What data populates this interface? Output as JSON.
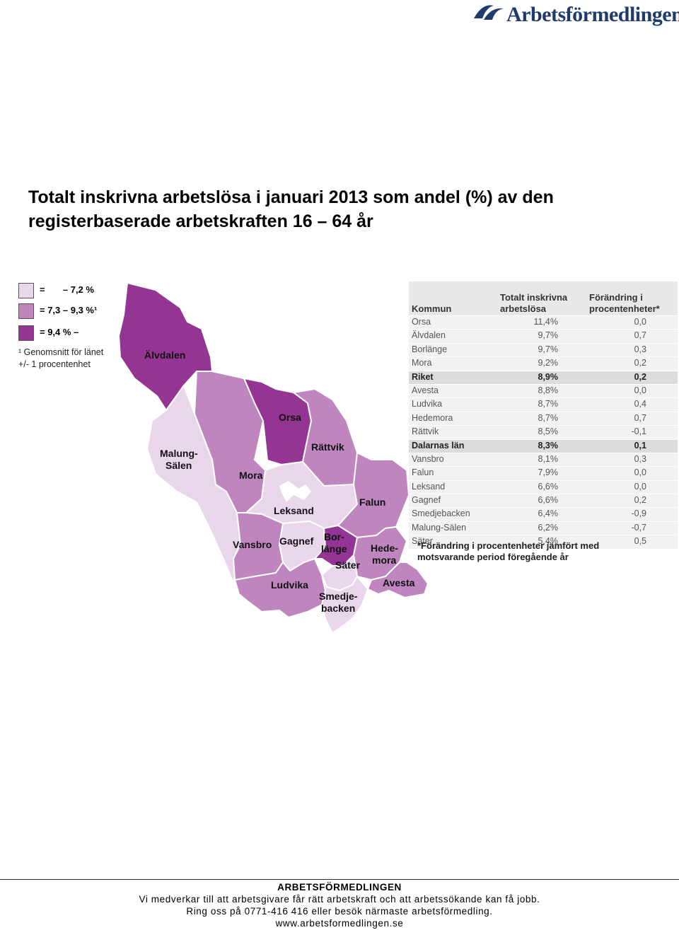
{
  "header": {
    "logo_text": "Arbetsförmedlingen",
    "title_line1": "Totalt inskrivna arbetslösa i januari 2013 som andel (%) av den",
    "title_line2": "registerbaserade arbetskraften 16 – 64 år"
  },
  "colors": {
    "low": "#ead6ea",
    "mid": "#be85be",
    "high": "#943594",
    "border": "#ffffff",
    "logo": "#1f3a6b"
  },
  "legend": {
    "items": [
      {
        "text": "=       – 7,2 %"
      },
      {
        "text": "= 7,3 – 9,3 %¹"
      },
      {
        "text": "= 9,4 % –"
      }
    ],
    "note_line1": "¹ Genomsnitt för länet",
    "note_line2": "+/- 1 procentenhet"
  },
  "map": {
    "labels": {
      "alvdalen": "Älvdalen",
      "orsa": "Orsa",
      "rattvik": "Rättvik",
      "malung1": "Malung-",
      "malung2": "Sälen",
      "mora": "Mora",
      "leksand": "Leksand",
      "falun": "Falun",
      "vansbro": "Vansbro",
      "gagnef": "Gagnef",
      "borlange1": "Bor-",
      "borlange2": "länge",
      "hedemora1": "Hede-",
      "hedemora2": "mora",
      "sater": "Säter",
      "ludvika": "Ludvika",
      "avesta": "Avesta",
      "smedje1": "Smedje-",
      "smedje2": "backen"
    }
  },
  "table": {
    "col_kommun": "Kommun",
    "col_total1": "Totalt inskrivna",
    "col_total2": "arbetslösa",
    "col_change1": "Förändring i",
    "col_change2": "procentenheter*",
    "rows": [
      {
        "k": "Orsa",
        "v": "11,4%",
        "c": "0,0"
      },
      {
        "k": "Älvdalen",
        "v": "9,7%",
        "c": "0,7"
      },
      {
        "k": "Borlänge",
        "v": "9,7%",
        "c": "0,3"
      },
      {
        "k": "Mora",
        "v": "9,2%",
        "c": "0,2"
      },
      {
        "k": "Riket",
        "v": "8,9%",
        "c": "0,2"
      },
      {
        "k": "Avesta",
        "v": "8,8%",
        "c": "0,0"
      },
      {
        "k": "Ludvika",
        "v": "8,7%",
        "c": "0,4"
      },
      {
        "k": "Hedemora",
        "v": "8,7%",
        "c": "0,7"
      },
      {
        "k": "Rättvik",
        "v": "8,5%",
        "c": "-0,1"
      },
      {
        "k": "Dalarnas län",
        "v": "8,3%",
        "c": "0,1"
      },
      {
        "k": "Vansbro",
        "v": "8,1%",
        "c": "0,3"
      },
      {
        "k": "Falun",
        "v": "7,9%",
        "c": "0,0"
      },
      {
        "k": "Leksand",
        "v": "6,6%",
        "c": "0,0"
      },
      {
        "k": "Gagnef",
        "v": "6,6%",
        "c": "0,2"
      },
      {
        "k": "Smedjebacken",
        "v": "6,4%",
        "c": "-0,9"
      },
      {
        "k": "Malung-Sälen",
        "v": "6,2%",
        "c": "-0,7"
      },
      {
        "k": "Säter",
        "v": "5,4%",
        "c": "0,5"
      }
    ],
    "note_line1": "*Förändring i procentenheter jämfört med",
    "note_line2": "motsvarande period föregående år"
  },
  "footer": {
    "org": "ARBETSFÖRMEDLINGEN",
    "line1": "Vi medverkar till att arbetsgivare får rätt arbetskraft och att arbetssökande kan få jobb.",
    "line2": "Ring oss på 0771-416 416 eller besök närmaste arbetsförmedling.",
    "url": "www.arbetsformedlingen.se"
  }
}
